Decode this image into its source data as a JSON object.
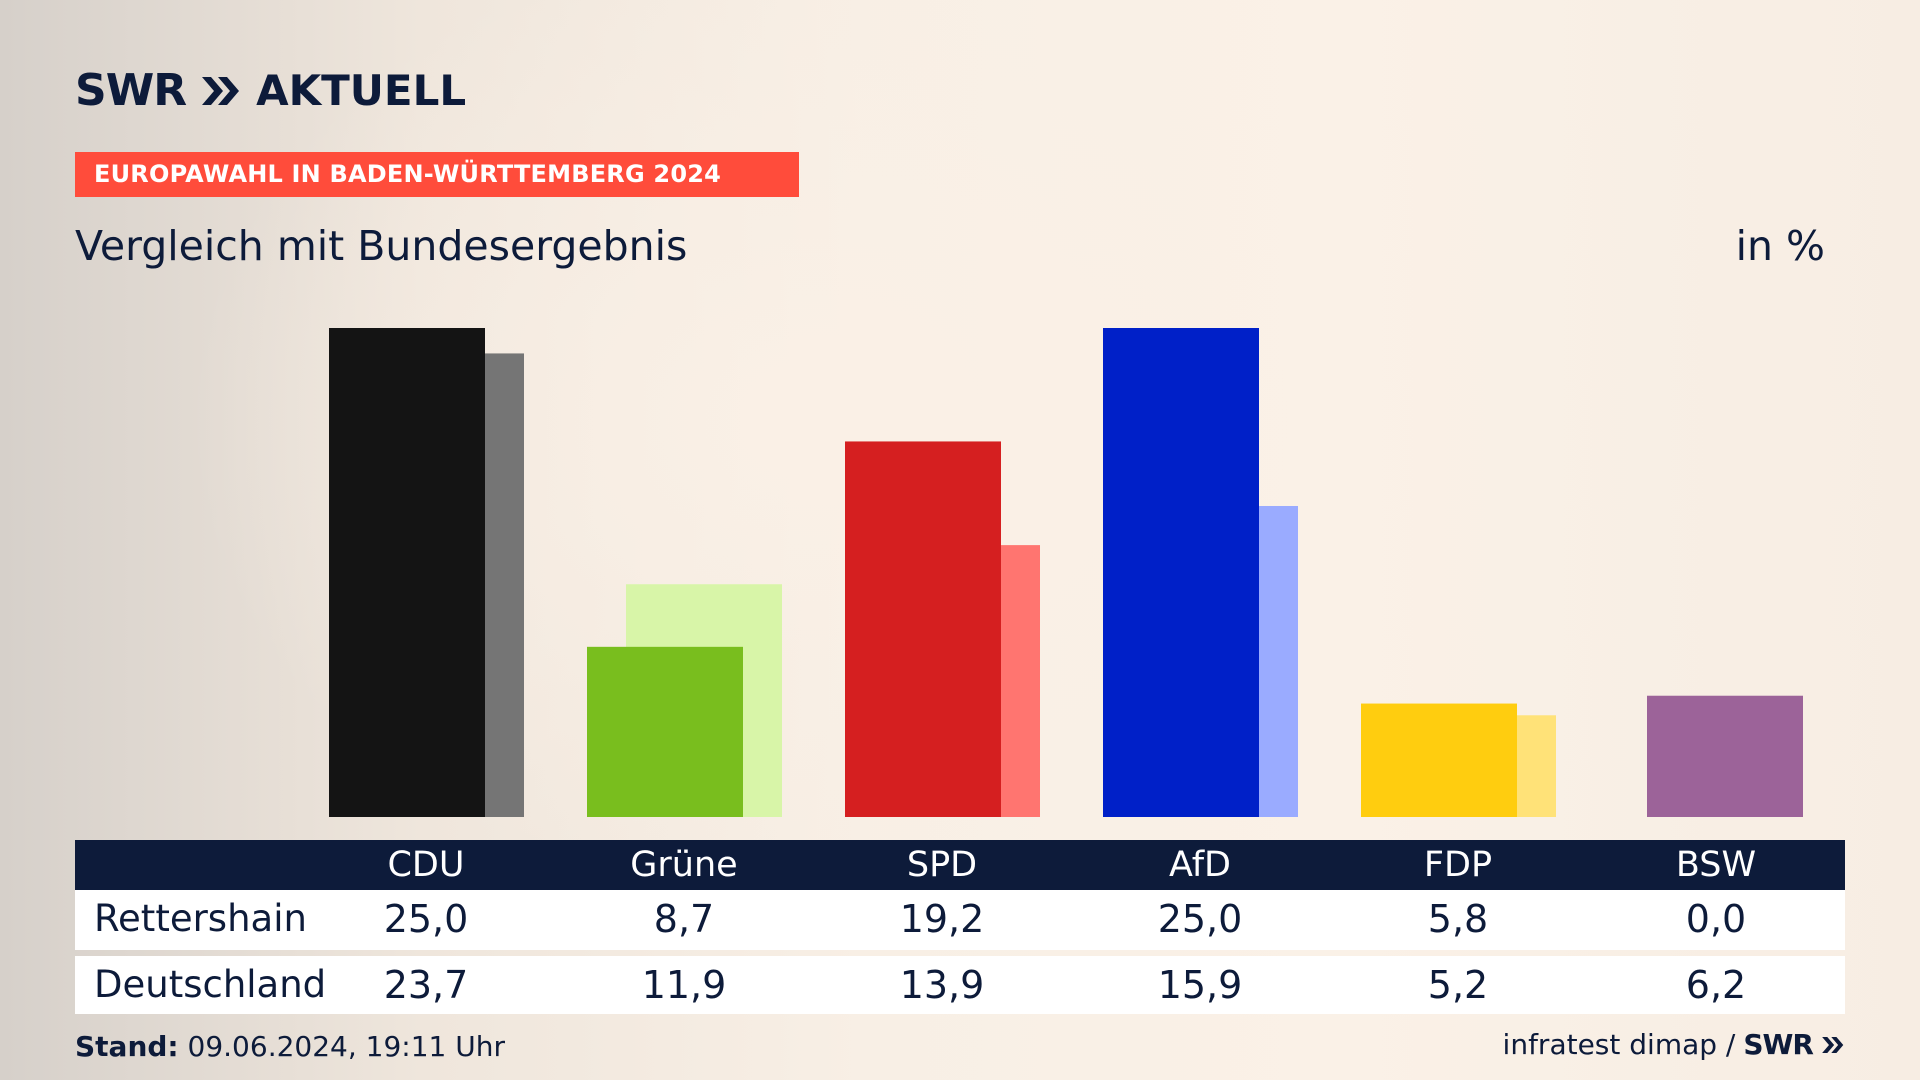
{
  "header": {
    "logo_swr": "SWR",
    "logo_aktuell": "AKTUELL",
    "banner": "EUROPAWAHL IN BADEN-WÜRTTEMBERG 2024",
    "subtitle": "Vergleich mit Bundesergebnis",
    "unit": "in %"
  },
  "chart_data": {
    "type": "bar",
    "categories": [
      "CDU",
      "Grüne",
      "SPD",
      "AfD",
      "FDP",
      "BSW"
    ],
    "series": [
      {
        "name": "Rettershain",
        "values": [
          25.0,
          8.7,
          19.2,
          25.0,
          5.8,
          0.0
        ],
        "colors": [
          "#141414",
          "#79be1e",
          "#d51f20",
          "#0020c8",
          "#ffcd0f",
          "#9c6399"
        ]
      },
      {
        "name": "Deutschland",
        "values": [
          23.7,
          11.9,
          13.9,
          15.9,
          5.2,
          6.2
        ],
        "colors": [
          "#757575",
          "#d8f5a8",
          "#ff7570",
          "#9aabff",
          "#ffe278",
          "#9c6399"
        ]
      }
    ],
    "ylim": [
      0,
      25
    ],
    "grid": false
  },
  "table": {
    "headers": [
      "CDU",
      "Grüne",
      "SPD",
      "AfD",
      "FDP",
      "BSW"
    ],
    "rows": [
      {
        "label": "Rettershain",
        "values": [
          "25,0",
          "8,7",
          "19,2",
          "25,0",
          "5,8",
          "0,0"
        ]
      },
      {
        "label": "Deutschland",
        "values": [
          "23,7",
          "11,9",
          "13,9",
          "15,9",
          "5,2",
          "6,2"
        ]
      }
    ]
  },
  "footer": {
    "stand_label": "Stand:",
    "stand_value": "09.06.2024, 19:11 Uhr",
    "source": "infratest dimap /",
    "source_logo": "SWR"
  },
  "colors": {
    "navy": "#0d1b3a",
    "banner": "#ff4c3b"
  }
}
